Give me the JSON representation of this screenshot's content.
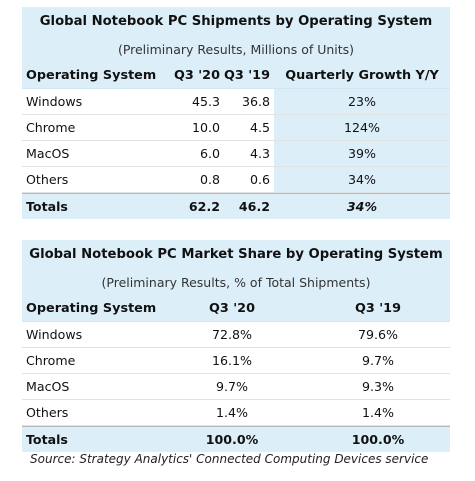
{
  "table1": {
    "title": "Global Notebook PC Shipments by Operating System",
    "subtitle": "(Preliminary Results, Millions of Units)",
    "headers": [
      "Operating System",
      "Q3 '20",
      "Q3 '19",
      "Quarterly Growth Y/Y"
    ],
    "rows": [
      [
        "Windows",
        "45.3",
        "36.8",
        "23%"
      ],
      [
        "Chrome",
        "10.0",
        "4.5",
        "124%"
      ],
      [
        "MacOS",
        "6.0",
        "4.3",
        "39%"
      ],
      [
        "Others",
        "0.8",
        "0.6",
        "34%"
      ]
    ],
    "totals": [
      "Totals",
      "62.2",
      "46.2",
      "34%"
    ]
  },
  "table2": {
    "title": "Global Notebook PC Market Share by Operating System",
    "subtitle": "(Preliminary Results, % of Total Shipments)",
    "headers": [
      "Operating System",
      "Q3 '20",
      "Q3 '19"
    ],
    "rows": [
      [
        "Windows",
        "72.8%",
        "79.6%"
      ],
      [
        "Chrome",
        "16.1%",
        "9.7%"
      ],
      [
        "MacOS",
        "9.7%",
        "9.3%"
      ],
      [
        "Others",
        "1.4%",
        "1.4%"
      ]
    ],
    "totals": [
      "Totals",
      "100.0%",
      "100.0%"
    ]
  },
  "source": "Source: Strategy Analytics' Connected Computing Devices service",
  "colors": {
    "band": "#dceff9",
    "rule": "#b9b9b9"
  }
}
